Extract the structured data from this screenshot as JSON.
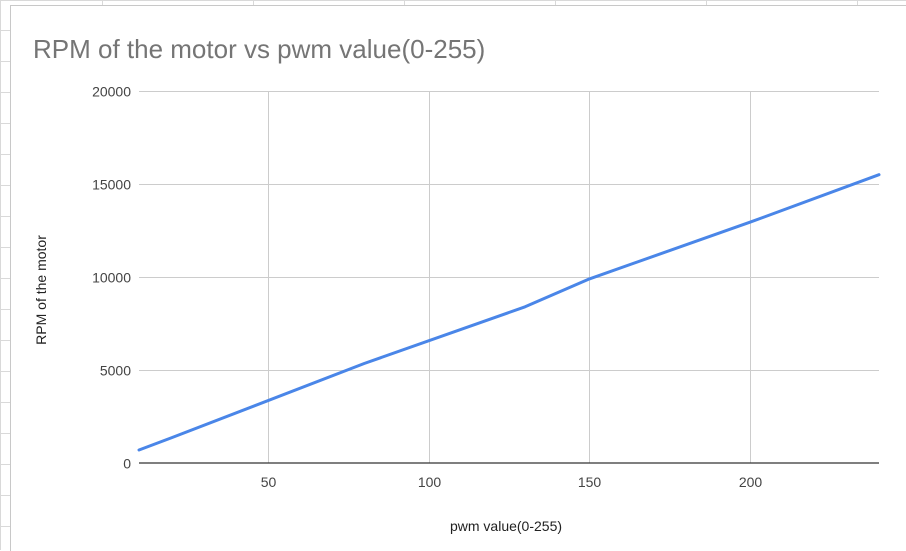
{
  "chart_data": {
    "type": "line",
    "title": "RPM of the motor vs pwm value(0-255)",
    "xlabel": "pwm value(0-255)",
    "ylabel": "RPM of the motor",
    "xlim": [
      10,
      240
    ],
    "ylim": [
      0,
      20000
    ],
    "x_ticks": [
      50,
      100,
      150,
      200
    ],
    "y_ticks": [
      0,
      5000,
      10000,
      15000,
      20000
    ],
    "grid": true,
    "legend": "none",
    "series": [
      {
        "color": "#4a86e8",
        "x": [
          10,
          20,
          80,
          130,
          150,
          200,
          240
        ],
        "y": [
          700,
          1350,
          5350,
          8400,
          9900,
          12950,
          15500
        ]
      }
    ]
  }
}
